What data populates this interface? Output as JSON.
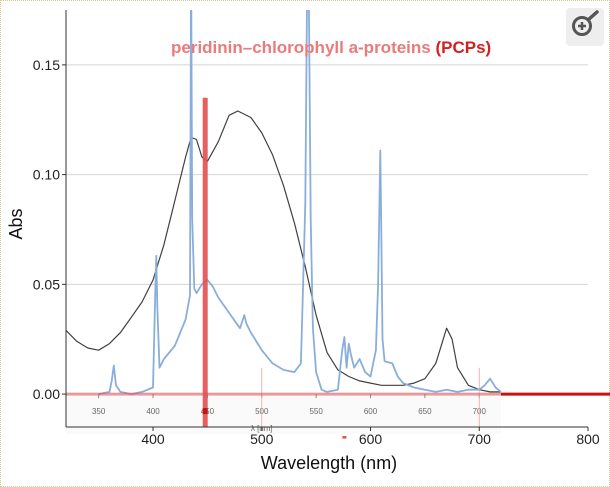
{
  "zoom_icon": "zoom-in-icon",
  "colors": {
    "annotation": "#ea7b7b",
    "annotation_emph": "#d42020",
    "blue": "#8aaedb",
    "gray": "#404040",
    "red": "#e05050"
  },
  "chart_data": {
    "type": "line",
    "annotation_text": "peridinin–chlorophyll a-proteins ",
    "annotation_emph": "(PCPs)",
    "xlabel": "Wavelength (nm)",
    "ylabel": "Abs",
    "xlim": [
      320,
      800
    ],
    "ylim": [
      -0.015,
      0.175
    ],
    "x_ticks": [
      400,
      500,
      600,
      700,
      800
    ],
    "y_ticks": [
      0.0,
      0.05,
      0.1,
      0.15
    ],
    "y_tick_labels": [
      "0.00",
      "0.05",
      "0.10",
      "0.15"
    ],
    "grid": true,
    "inset_axis": {
      "label": "λ [nm]",
      "ticks": [
        350,
        400,
        450,
        500,
        550,
        600,
        650,
        700
      ],
      "tick_labels": [
        "350",
        "400",
        "450",
        "500",
        "550",
        "600",
        "650",
        "700"
      ]
    },
    "series": [
      {
        "color": "#404040",
        "x": [
          320,
          330,
          340,
          350,
          360,
          370,
          380,
          390,
          400,
          410,
          420,
          430,
          435,
          440,
          445,
          450,
          460,
          470,
          478,
          490,
          500,
          510,
          520,
          530,
          540,
          550,
          560,
          570,
          580,
          590,
          600,
          610,
          620,
          630,
          640,
          650,
          660,
          665,
          670,
          675,
          680,
          690,
          700,
          710,
          720
        ],
        "y": [
          0.029,
          0.024,
          0.021,
          0.02,
          0.023,
          0.028,
          0.035,
          0.042,
          0.052,
          0.068,
          0.088,
          0.108,
          0.117,
          0.116,
          0.108,
          0.106,
          0.115,
          0.127,
          0.129,
          0.126,
          0.119,
          0.109,
          0.095,
          0.078,
          0.058,
          0.036,
          0.019,
          0.011,
          0.008,
          0.006,
          0.005,
          0.004,
          0.004,
          0.004,
          0.005,
          0.007,
          0.014,
          0.022,
          0.03,
          0.025,
          0.012,
          0.004,
          0.002,
          0.001,
          0.001
        ]
      },
      {
        "color": "#8aaedb",
        "x": [
          350,
          360,
          362,
          364,
          366,
          370,
          380,
          390,
          400,
          402,
          403,
          404,
          406,
          410,
          420,
          430,
          434,
          435,
          436,
          438,
          440,
          445,
          450,
          455,
          460,
          470,
          480,
          484,
          486,
          488,
          490,
          500,
          510,
          520,
          530,
          536,
          538,
          540,
          542,
          543,
          545,
          547,
          550,
          555,
          560,
          570,
          574,
          576,
          578,
          580,
          582,
          585,
          590,
          595,
          600,
          605,
          607,
          609,
          610,
          611,
          613,
          620,
          625,
          630,
          640,
          650,
          660,
          670,
          680,
          690,
          700,
          705,
          710,
          715,
          720
        ],
        "y": [
          0.0,
          0.001,
          0.006,
          0.013,
          0.004,
          0.001,
          0.0,
          0.001,
          0.003,
          0.045,
          0.063,
          0.04,
          0.012,
          0.016,
          0.022,
          0.034,
          0.045,
          0.2,
          0.08,
          0.048,
          0.046,
          0.05,
          0.052,
          0.049,
          0.044,
          0.037,
          0.03,
          0.036,
          0.032,
          0.03,
          0.028,
          0.02,
          0.014,
          0.011,
          0.01,
          0.014,
          0.05,
          0.087,
          0.2,
          0.2,
          0.08,
          0.03,
          0.01,
          0.002,
          0.001,
          0.002,
          0.02,
          0.026,
          0.012,
          0.023,
          0.018,
          0.012,
          0.016,
          0.01,
          0.008,
          0.02,
          0.05,
          0.111,
          0.07,
          0.025,
          0.015,
          0.014,
          0.008,
          0.005,
          0.003,
          0.002,
          0.001,
          0.002,
          0.001,
          0.002,
          0.002,
          0.004,
          0.007,
          0.003,
          0.001
        ]
      }
    ],
    "highlights": [
      {
        "color": "#e05050",
        "x": 448,
        "y_top": 0.135,
        "orientation": "vertical"
      },
      {
        "color": "#e05050",
        "y": 0.0,
        "x_start": 320,
        "x_end": 800,
        "orientation": "horizontal"
      }
    ]
  }
}
